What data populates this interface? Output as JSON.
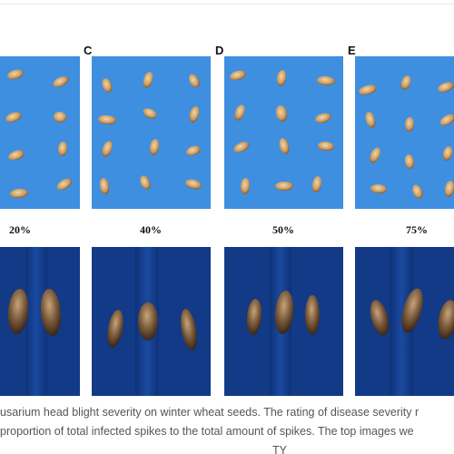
{
  "figure": {
    "panels": [
      {
        "label": "",
        "percent": "20%"
      },
      {
        "label": "C",
        "percent": "40%"
      },
      {
        "label": "D",
        "percent": "50%"
      },
      {
        "label": "E",
        "percent": "75%"
      }
    ],
    "caption": {
      "line1": "usarium head blight severity on winter wheat seeds. The rating of disease severity r",
      "line2": "proportion of total infected spikes to the total amount of spikes. The top images we",
      "line3": "TY"
    }
  },
  "colors": {
    "top_background": "#3f8fe0",
    "bottom_background": "#123a86",
    "seed": "#c89a62"
  }
}
